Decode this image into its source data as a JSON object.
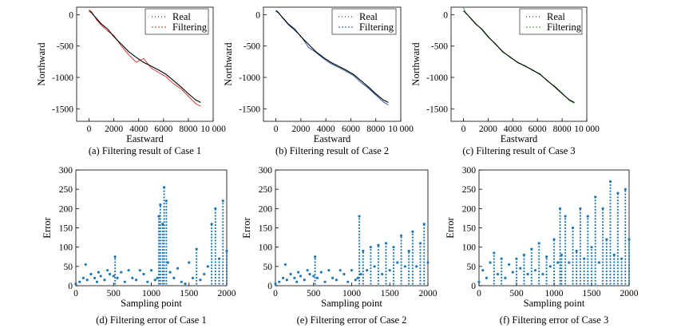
{
  "colors": {
    "real": "#000000",
    "case1": "#d62728",
    "case2": "#1f4e99",
    "case3": "#2ca02c",
    "error": "#1f77b4"
  },
  "chart_data": [
    {
      "type": "line",
      "caption": "(a) Filtering result of Case 1",
      "xlabel": "Eastward",
      "ylabel": "Northward",
      "xlim": [
        -1000,
        10000
      ],
      "ylim": [
        -1700,
        120
      ],
      "xticks": [
        0,
        2000,
        4000,
        6000,
        8000,
        10000
      ],
      "xtick_labels": [
        "0",
        "2000",
        "4000",
        "6000",
        "8000",
        "10 000"
      ],
      "yticks": [
        0,
        -500,
        -1000,
        -1500
      ],
      "ytick_labels": [
        "0",
        "-500",
        "-1000",
        "-1500"
      ],
      "legend": {
        "position": "top-right",
        "entries": [
          "Real",
          "Filtering"
        ]
      },
      "grid": false,
      "series": [
        {
          "name": "Real",
          "x": [
            0,
            200,
            600,
            1000,
            1500,
            2000,
            2600,
            3200,
            3800,
            4400,
            5000,
            5600,
            6200,
            6800,
            7400,
            8000,
            8600,
            9000
          ],
          "y": [
            60,
            30,
            -60,
            -150,
            -230,
            -350,
            -470,
            -590,
            -680,
            -760,
            -820,
            -880,
            -950,
            -1050,
            -1150,
            -1260,
            -1360,
            -1400
          ]
        },
        {
          "name": "Filtering",
          "x": [
            0,
            200,
            600,
            1000,
            1500,
            2000,
            2600,
            3200,
            3800,
            4400,
            5000,
            5600,
            6200,
            6800,
            7400,
            8000,
            8600,
            9000
          ],
          "y": [
            80,
            50,
            -80,
            -170,
            -260,
            -330,
            -500,
            -640,
            -760,
            -700,
            -850,
            -920,
            -990,
            -1100,
            -1180,
            -1300,
            -1420,
            -1460
          ]
        }
      ]
    },
    {
      "type": "line",
      "caption": "(b) Filtering result of Case 2",
      "xlabel": "Eastward",
      "ylabel": "Northward",
      "xlim": [
        -1000,
        10000
      ],
      "ylim": [
        -1700,
        120
      ],
      "xticks": [
        0,
        2000,
        4000,
        6000,
        8000,
        10000
      ],
      "xtick_labels": [
        "0",
        "2000",
        "4000",
        "6000",
        "8000",
        "10 000"
      ],
      "yticks": [
        0,
        -500,
        -1000,
        -1500
      ],
      "ytick_labels": [
        "0",
        "-500",
        "-1000",
        "-1500"
      ],
      "legend": {
        "position": "top-right",
        "entries": [
          "Real",
          "Filtering"
        ]
      },
      "grid": false,
      "series": [
        {
          "name": "Real",
          "x": [
            0,
            200,
            600,
            1000,
            1500,
            2000,
            2600,
            3200,
            3800,
            4400,
            5000,
            5600,
            6200,
            6800,
            7400,
            8000,
            8600,
            9000
          ],
          "y": [
            60,
            30,
            -60,
            -150,
            -230,
            -350,
            -470,
            -590,
            -680,
            -760,
            -820,
            -880,
            -950,
            -1050,
            -1150,
            -1260,
            -1360,
            -1400
          ]
        },
        {
          "name": "Filtering",
          "x": [
            0,
            200,
            600,
            1000,
            1500,
            2000,
            2600,
            3200,
            3800,
            4400,
            5000,
            5600,
            6200,
            6800,
            7400,
            8000,
            8600,
            9000
          ],
          "y": [
            70,
            40,
            -70,
            -160,
            -250,
            -340,
            -520,
            -600,
            -700,
            -780,
            -840,
            -900,
            -970,
            -1080,
            -1170,
            -1280,
            -1390,
            -1440
          ]
        }
      ]
    },
    {
      "type": "line",
      "caption": "(c) Filtering result of Case 3",
      "xlabel": "Eastward",
      "ylabel": "Northward",
      "xlim": [
        -1000,
        10000
      ],
      "ylim": [
        -1700,
        120
      ],
      "xticks": [
        0,
        2000,
        4000,
        6000,
        8000,
        10000
      ],
      "xtick_labels": [
        "0",
        "2000",
        "4000",
        "6000",
        "8000",
        "10 000"
      ],
      "yticks": [
        0,
        -500,
        -1000,
        -1500
      ],
      "ytick_labels": [
        "0",
        "-500",
        "-1000",
        "-1500"
      ],
      "legend": {
        "position": "top-right",
        "entries": [
          "Real",
          "Filtering"
        ]
      },
      "grid": false,
      "series": [
        {
          "name": "Real",
          "x": [
            0,
            200,
            600,
            1000,
            1500,
            2000,
            2600,
            3200,
            3800,
            4400,
            5000,
            5600,
            6200,
            6800,
            7400,
            8000,
            8600,
            9000
          ],
          "y": [
            60,
            30,
            -60,
            -150,
            -230,
            -350,
            -470,
            -590,
            -680,
            -760,
            -820,
            -880,
            -950,
            -1050,
            -1150,
            -1260,
            -1360,
            -1400
          ]
        },
        {
          "name": "Filtering",
          "x": [
            0,
            200,
            600,
            1000,
            1500,
            2000,
            2600,
            3200,
            3800,
            4400,
            5000,
            5600,
            6200,
            6800,
            7400,
            8000,
            8600,
            9000
          ],
          "y": [
            110,
            20,
            -50,
            -140,
            -240,
            -360,
            -460,
            -600,
            -670,
            -770,
            -810,
            -890,
            -940,
            -1060,
            -1140,
            -1250,
            -1370,
            -1410
          ]
        }
      ]
    },
    {
      "type": "scatter",
      "caption": "(d) Filtering error of Case 1",
      "xlabel": "Sampling point",
      "ylabel": "Error",
      "xlim": [
        0,
        2000
      ],
      "ylim": [
        0,
        300
      ],
      "xticks": [
        0,
        500,
        1000,
        1500,
        2000
      ],
      "xtick_labels": [
        "0",
        "500",
        "1000",
        "1500",
        "2000"
      ],
      "yticks": [
        0,
        50,
        100,
        150,
        200,
        250,
        300
      ],
      "ytick_labels": [
        "0",
        "50",
        "100",
        "150",
        "200",
        "250",
        "300"
      ],
      "grid": false,
      "series": [
        {
          "x": [
            0,
            50,
            100,
            130,
            150,
            200,
            250,
            280,
            300,
            330,
            380,
            420,
            450,
            500,
            520,
            550,
            600,
            650,
            700,
            750,
            800,
            850,
            900,
            950,
            1000,
            1050,
            1080,
            1100,
            1120,
            1150,
            1170,
            1200,
            1220,
            1250,
            1300,
            1350,
            1400,
            1450,
            1500,
            1550,
            1600,
            1650,
            1700,
            1750,
            1800,
            1850,
            1900,
            1950,
            2000
          ],
          "y": [
            5,
            10,
            20,
            55,
            15,
            30,
            20,
            10,
            35,
            25,
            15,
            40,
            30,
            25,
            75,
            20,
            35,
            10,
            40,
            20,
            15,
            40,
            30,
            10,
            40,
            15,
            20,
            180,
            210,
            160,
            255,
            220,
            60,
            35,
            20,
            45,
            10,
            5,
            60,
            20,
            95,
            15,
            30,
            50,
            160,
            200,
            70,
            220,
            90
          ]
        }
      ]
    },
    {
      "type": "scatter",
      "caption": "(e) Filtering error of Case 2",
      "xlabel": "Sampling point",
      "ylabel": "Error",
      "xlim": [
        0,
        2000
      ],
      "ylim": [
        0,
        300
      ],
      "xticks": [
        0,
        500,
        1000,
        1500,
        2000
      ],
      "xtick_labels": [
        "0",
        "500",
        "1000",
        "1500",
        "2000"
      ],
      "yticks": [
        0,
        50,
        100,
        150,
        200,
        250,
        300
      ],
      "ytick_labels": [
        "0",
        "50",
        "100",
        "150",
        "200",
        "250",
        "300"
      ],
      "grid": false,
      "series": [
        {
          "x": [
            0,
            50,
            100,
            130,
            150,
            200,
            250,
            280,
            300,
            330,
            380,
            420,
            450,
            500,
            520,
            550,
            600,
            650,
            700,
            750,
            800,
            850,
            900,
            950,
            1000,
            1050,
            1080,
            1100,
            1120,
            1150,
            1200,
            1250,
            1300,
            1350,
            1400,
            1450,
            1500,
            1550,
            1600,
            1650,
            1700,
            1750,
            1800,
            1850,
            1900,
            1950,
            2000
          ],
          "y": [
            5,
            10,
            20,
            55,
            15,
            30,
            20,
            10,
            35,
            25,
            15,
            40,
            30,
            25,
            75,
            20,
            35,
            10,
            40,
            20,
            15,
            40,
            30,
            10,
            40,
            15,
            20,
            180,
            30,
            90,
            40,
            100,
            50,
            105,
            30,
            110,
            40,
            100,
            60,
            130,
            50,
            90,
            140,
            50,
            110,
            160,
            60
          ]
        }
      ]
    },
    {
      "type": "scatter",
      "caption": "(f) Filtering error of Case 3",
      "xlabel": "Sampling point",
      "ylabel": "Error",
      "xlim": [
        0,
        2000
      ],
      "ylim": [
        0,
        300
      ],
      "xticks": [
        0,
        500,
        1000,
        1500,
        2000
      ],
      "xtick_labels": [
        "0",
        "500",
        "1000",
        "1500",
        "2000"
      ],
      "yticks": [
        0,
        50,
        100,
        150,
        200,
        250,
        300
      ],
      "ytick_labels": [
        "0",
        "50",
        "100",
        "150",
        "200",
        "250",
        "300"
      ],
      "grid": false,
      "series": [
        {
          "x": [
            0,
            50,
            100,
            150,
            200,
            250,
            300,
            350,
            400,
            450,
            500,
            550,
            600,
            650,
            700,
            750,
            800,
            850,
            900,
            950,
            1000,
            1050,
            1080,
            1100,
            1150,
            1200,
            1250,
            1300,
            1350,
            1400,
            1450,
            1500,
            1550,
            1600,
            1650,
            1700,
            1750,
            1800,
            1850,
            1900,
            1950,
            2000
          ],
          "y": [
            10,
            40,
            20,
            60,
            85,
            30,
            70,
            20,
            55,
            35,
            70,
            45,
            80,
            30,
            95,
            40,
            110,
            30,
            75,
            50,
            120,
            60,
            200,
            80,
            180,
            60,
            150,
            90,
            200,
            70,
            180,
            100,
            230,
            60,
            200,
            120,
            270,
            80,
            240,
            70,
            250,
            120
          ]
        }
      ]
    }
  ]
}
